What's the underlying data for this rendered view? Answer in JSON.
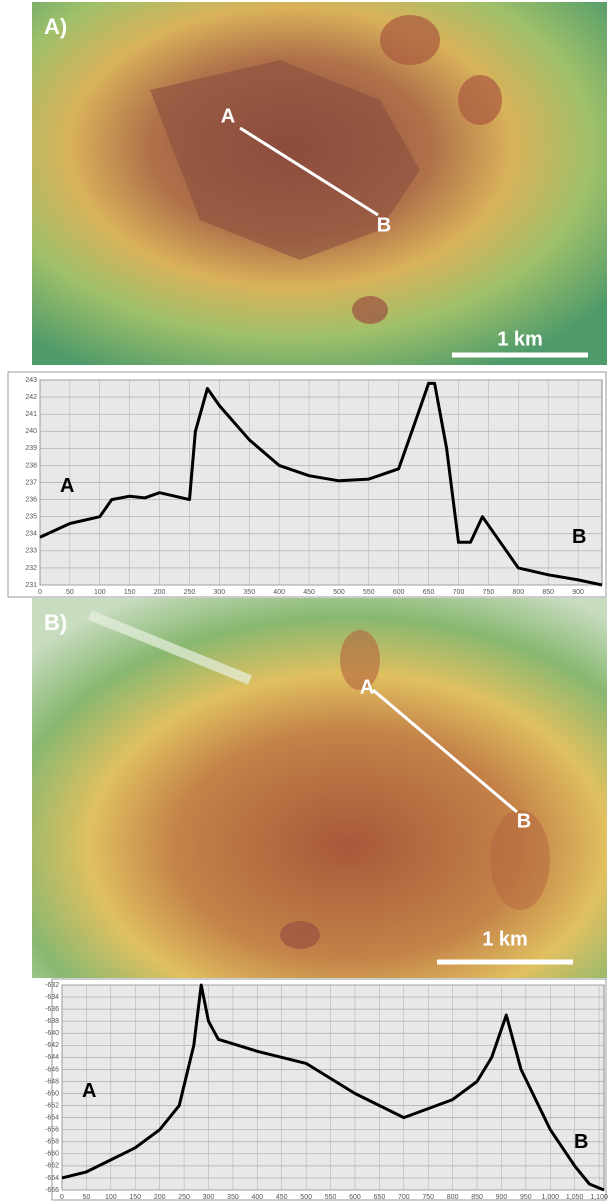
{
  "maps": [
    {
      "label": "A)",
      "point_a": "A",
      "point_b": "B",
      "scale": "1 km"
    },
    {
      "label": "B)",
      "point_a": "A",
      "point_b": "B",
      "scale": "1 km"
    }
  ],
  "chart_data": [
    {
      "type": "line",
      "grid": true,
      "annotations": [
        "A",
        "B"
      ],
      "x": [
        0,
        50,
        100,
        120,
        150,
        175,
        200,
        250,
        260,
        280,
        300,
        350,
        400,
        450,
        500,
        550,
        600,
        630,
        650,
        660,
        680,
        700,
        720,
        740,
        760,
        800,
        850,
        900,
        940
      ],
      "series": [
        {
          "color": "#000000",
          "values": [
            233.8,
            234.6,
            235,
            236,
            236.2,
            236.1,
            236.4,
            236,
            240,
            242.5,
            241.5,
            239.5,
            238,
            237.4,
            237.1,
            237.2,
            237.8,
            240.8,
            242.8,
            242.8,
            239,
            233.5,
            233.5,
            235,
            234,
            232,
            231.6,
            231.3,
            231
          ]
        }
      ],
      "xlim": [
        0,
        940
      ],
      "ylim": [
        231,
        243
      ],
      "xticks": [
        0,
        50,
        100,
        150,
        200,
        250,
        300,
        350,
        400,
        450,
        500,
        550,
        600,
        650,
        700,
        750,
        800,
        850,
        900
      ],
      "yticks": [
        231,
        232,
        233,
        234,
        235,
        236,
        237,
        238,
        239,
        240,
        241,
        242,
        243
      ]
    },
    {
      "type": "line",
      "grid": true,
      "annotations": [
        "A",
        "B"
      ],
      "x": [
        0,
        50,
        100,
        150,
        200,
        240,
        270,
        285,
        300,
        320,
        400,
        500,
        600,
        700,
        800,
        850,
        880,
        910,
        940,
        1000,
        1050,
        1080,
        1110
      ],
      "series": [
        {
          "color": "#000000",
          "values": [
            -664,
            -663,
            -661,
            -659,
            -656,
            -652,
            -642,
            -632,
            -638,
            -641,
            -643,
            -645,
            -650,
            -654,
            -651,
            -648,
            -644,
            -637,
            -646,
            -656,
            -662,
            -665,
            -666
          ]
        }
      ],
      "xlim": [
        0,
        1110
      ],
      "ylim": [
        -666,
        -632
      ],
      "xticks": [
        0,
        50,
        100,
        150,
        200,
        250,
        300,
        350,
        400,
        450,
        500,
        550,
        600,
        650,
        700,
        750,
        800,
        850,
        900,
        950,
        {
          "value": 1000,
          "label": "1,000"
        },
        {
          "value": 1050,
          "label": "1,050"
        },
        {
          "value": 1100,
          "label": "1,100"
        }
      ],
      "yticks": [
        -632,
        -634,
        -636,
        -638,
        -640,
        -642,
        -644,
        -646,
        -648,
        -650,
        -652,
        -654,
        -656,
        -658,
        -660,
        -662,
        -664,
        -666
      ]
    }
  ]
}
